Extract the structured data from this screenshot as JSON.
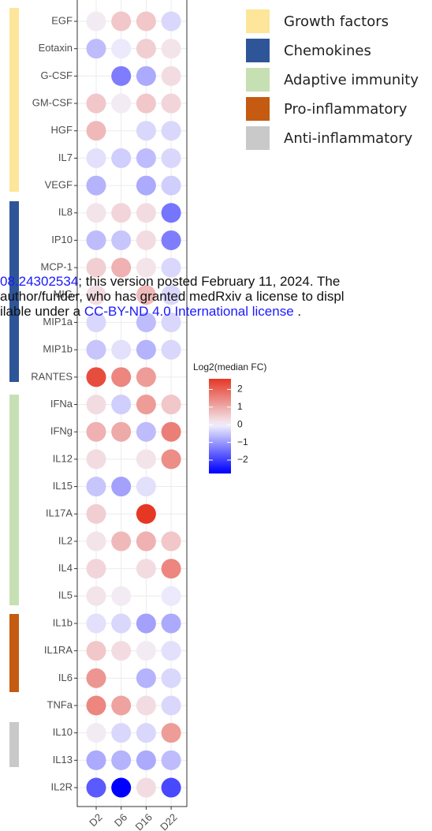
{
  "chart_data": {
    "type": "dotheatmap",
    "columns": [
      "D2",
      "D6",
      "D16",
      "D22"
    ],
    "rows": [
      "EGF",
      "Eotaxin",
      "G-CSF",
      "GM-CSF",
      "HGF",
      "IL7",
      "VEGF",
      "IL8",
      "IP10",
      "MCP-1",
      "MIG",
      "MIP1a",
      "MIP1b",
      "RANTES",
      "IFNa",
      "IFNg",
      "IL12",
      "IL15",
      "IL17A",
      "IL2",
      "IL4",
      "IL5",
      "IL1b",
      "IL1RA",
      "IL6",
      "TNFa",
      "IL10",
      "IL13",
      "IL2R"
    ],
    "z": [
      [
        0.1,
        0.6,
        0.6,
        -0.3
      ],
      [
        -0.6,
        -0.1,
        0.5,
        0.2
      ],
      [
        null,
        -1.3,
        -0.8,
        0.3
      ],
      [
        0.6,
        0.1,
        0.6,
        0.4
      ],
      [
        0.8,
        null,
        -0.3,
        -0.3
      ],
      [
        -0.2,
        -0.4,
        -0.6,
        -0.3
      ],
      [
        -0.7,
        null,
        -0.8,
        -0.4
      ],
      [
        0.2,
        0.4,
        0.3,
        -1.4
      ],
      [
        -0.6,
        -0.5,
        0.3,
        -1.3
      ],
      [
        0.5,
        0.9,
        0.2,
        -0.3
      ],
      [
        0.3,
        null,
        0.8,
        -0.3
      ],
      [
        -0.3,
        null,
        -0.6,
        -0.3
      ],
      [
        -0.5,
        -0.2,
        -0.7,
        -0.3
      ],
      [
        2.3,
        1.5,
        1.2,
        null
      ],
      [
        0.3,
        -0.4,
        1.2,
        0.6
      ],
      [
        0.9,
        1.0,
        -0.6,
        1.6
      ],
      [
        0.3,
        null,
        0.2,
        1.4
      ],
      [
        -0.5,
        -0.9,
        -0.2,
        null
      ],
      [
        0.5,
        null,
        2.6,
        null
      ],
      [
        0.2,
        0.8,
        0.9,
        0.6
      ],
      [
        0.4,
        null,
        0.3,
        1.5
      ],
      [
        0.2,
        0.1,
        null,
        -0.1
      ],
      [
        -0.2,
        -0.3,
        -0.9,
        -0.8
      ],
      [
        0.6,
        0.3,
        0.1,
        -0.2
      ],
      [
        1.3,
        null,
        -0.7,
        -0.3
      ],
      [
        1.5,
        1.1,
        0.3,
        -0.3
      ],
      [
        0.1,
        -0.3,
        -0.3,
        1.2
      ],
      [
        -0.8,
        -0.7,
        -0.8,
        -0.6
      ],
      [
        -1.7,
        -2.7,
        0.3,
        -1.9
      ]
    ],
    "color_low": "#0000ff",
    "color_mid": "#f4f2fb",
    "color_high": "#e5301c",
    "color_limits": [
      -2.7,
      2.7
    ],
    "colorbar": {
      "title": "Log2(median FC)",
      "clim": [
        -2.76,
        2.6
      ],
      "ticks": [
        2,
        1,
        0,
        {
          "value": -1,
          "label": "−1"
        },
        {
          "value": -2,
          "label": "−2"
        }
      ]
    },
    "groups": [
      {
        "name": "Growth factors",
        "color": "#fde59a"
      },
      {
        "name": "Chemokines",
        "color": "#2e5597"
      },
      {
        "name": "Adaptive immunity",
        "color": "#c6e0b4"
      },
      {
        "name": "Pro-inflammatory",
        "color": "#c55a11"
      },
      {
        "name": "Anti-inflammatory",
        "color": "#c9c9c9"
      }
    ]
  },
  "watermark": {
    "line1": [
      "08.24302534",
      "; this version posted February 11, 2024. The"
    ],
    "line2": "author/funder, who has granted medRxiv a license to displ",
    "line3": [
      "ilable under a ",
      "CC-BY-ND 4.0 International license",
      " ."
    ]
  }
}
